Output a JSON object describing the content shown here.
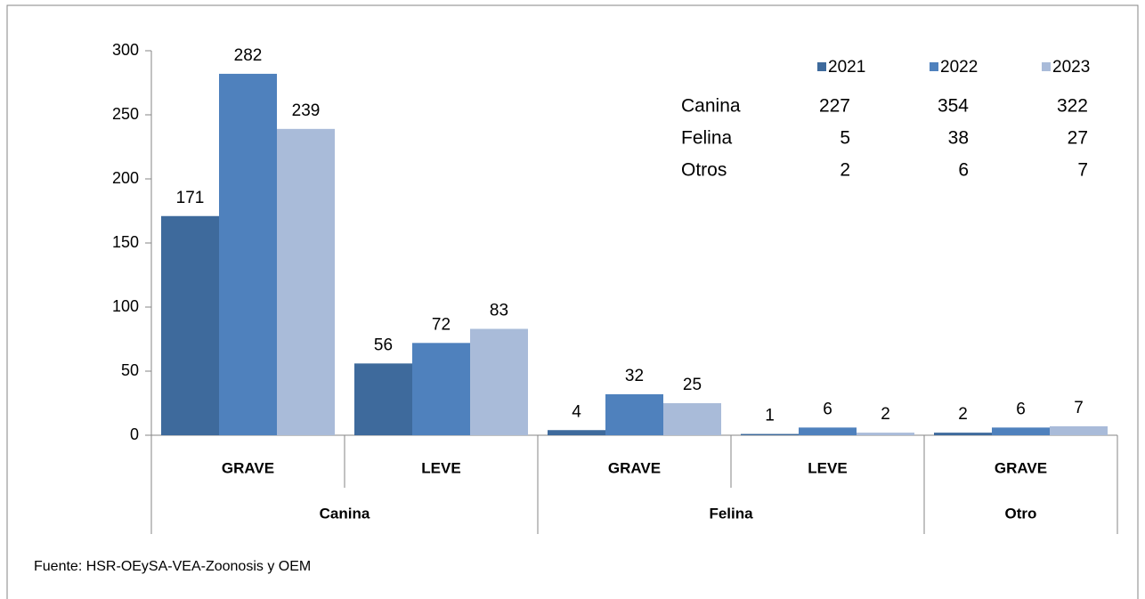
{
  "chart_data": {
    "type": "bar",
    "groups": [
      {
        "name": "Canina",
        "categories": [
          "GRAVE",
          "LEVE"
        ]
      },
      {
        "name": "Felina",
        "categories": [
          "GRAVE",
          "LEVE"
        ]
      },
      {
        "name": "Otro",
        "categories": [
          "GRAVE"
        ]
      }
    ],
    "series": [
      {
        "name": "2021",
        "color": "#3e6a9c",
        "values": [
          171,
          56,
          4,
          1,
          2
        ]
      },
      {
        "name": "2022",
        "color": "#4f81bd",
        "values": [
          282,
          72,
          32,
          6,
          6
        ]
      },
      {
        "name": "2023",
        "color": "#a9bbd9",
        "values": [
          239,
          83,
          25,
          2,
          7
        ]
      }
    ],
    "ylim": [
      0,
      300
    ],
    "yticks": [
      0,
      50,
      100,
      150,
      200,
      250,
      300
    ],
    "grid": false,
    "legend": "top-right",
    "table": [
      {
        "name": "Canina",
        "values": [
          227,
          354,
          322
        ]
      },
      {
        "name": "Felina",
        "values": [
          5,
          38,
          27
        ]
      },
      {
        "name": "Otros",
        "values": [
          2,
          6,
          7
        ]
      }
    ],
    "source": "Fuente: HSR-OEySA-VEA-Zoonosis y OEM"
  }
}
